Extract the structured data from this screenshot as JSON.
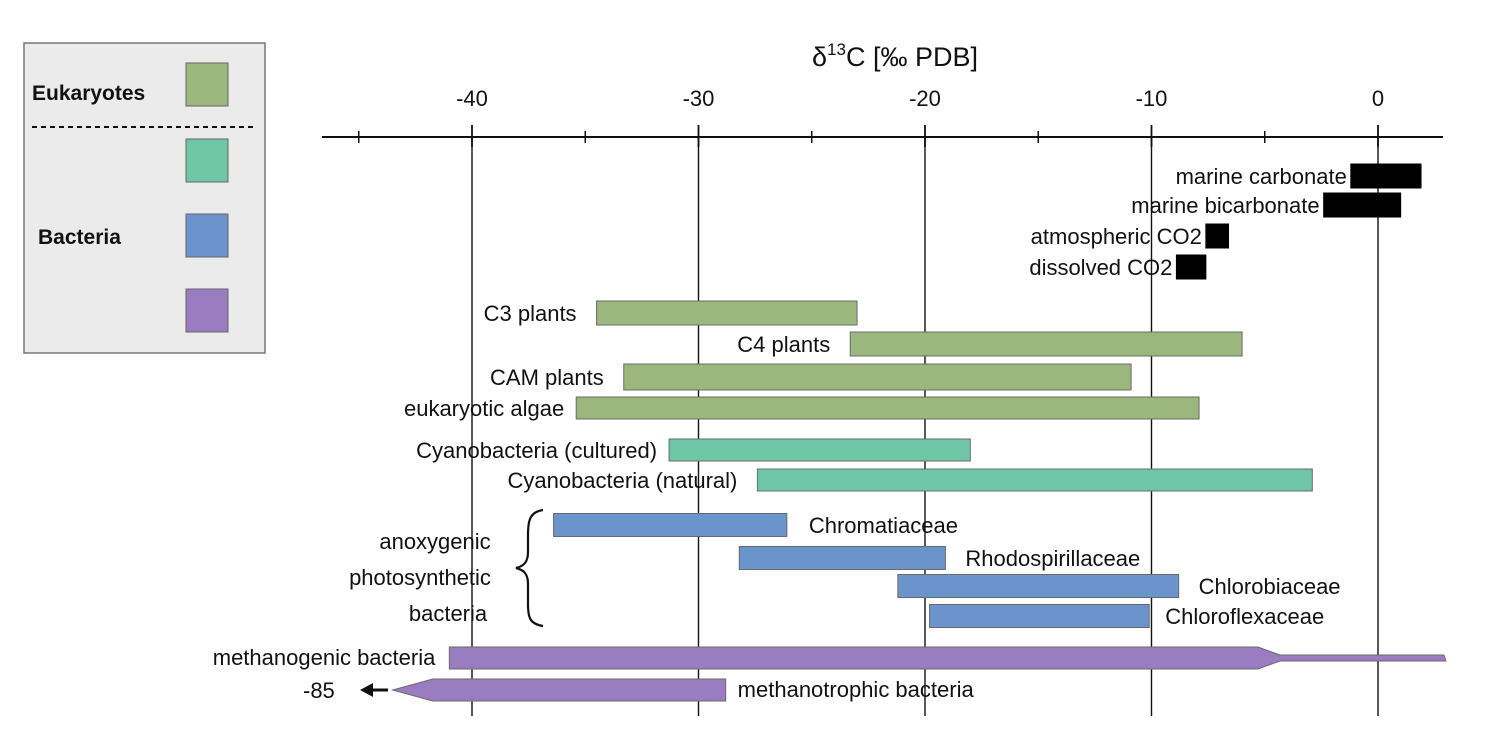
{
  "chart_data": {
    "type": "bar",
    "orientation": "horizontal-range",
    "title": "δ13C [‰ PDB]",
    "title_main": "δ",
    "title_sup": "13",
    "title_rest": "C [‰ PDB]",
    "xlim": [
      -50,
      3
    ],
    "ticks": [
      -40,
      -30,
      -20,
      -10,
      0
    ],
    "tick_labels": [
      "-40",
      "-30",
      "-20",
      "-10",
      "0"
    ],
    "grid_x": true,
    "legend_position": "top-left",
    "colors": {
      "eukaryotes": "#9bb77e",
      "cyanobacteria": "#6fc6a6",
      "anoxygenic": "#6b93cc",
      "methane": "#9a7cc0",
      "inorganic": "#000000"
    },
    "legend": {
      "eukaryotes_label": "Eukaryotes",
      "bacteria_label": "Bacteria"
    },
    "bars": [
      {
        "label": "marine carbonate",
        "min": -1.2,
        "max": 1.9,
        "group": "inorganic"
      },
      {
        "label": "marine bicarbonate",
        "min": -2.4,
        "max": 1.0,
        "group": "inorganic"
      },
      {
        "label": "atmospheric CO2",
        "min": -7.6,
        "max": -6.6,
        "group": "inorganic"
      },
      {
        "label": "dissolved CO2",
        "min": -8.9,
        "max": -7.6,
        "group": "inorganic"
      },
      {
        "label": "C3 plants",
        "min": -34.5,
        "max": -23.0,
        "group": "eukaryotes"
      },
      {
        "label": "C4 plants",
        "min": -23.3,
        "max": -6.0,
        "group": "eukaryotes"
      },
      {
        "label": "CAM plants",
        "min": -33.3,
        "max": -10.9,
        "group": "eukaryotes"
      },
      {
        "label": "eukaryotic algae",
        "min": -35.4,
        "max": -7.9,
        "group": "eukaryotes"
      },
      {
        "label": "Cyanobacteria (cultured)",
        "min": -31.3,
        "max": -18.0,
        "group": "cyanobacteria"
      },
      {
        "label": "Cyanobacteria (natural)",
        "min": -27.4,
        "max": -2.9,
        "group": "cyanobacteria"
      },
      {
        "label": "Chromatiaceae",
        "min": -36.4,
        "max": -26.1,
        "group": "anoxygenic"
      },
      {
        "label": "Rhodospirillaceae",
        "min": -28.2,
        "max": -19.1,
        "group": "anoxygenic"
      },
      {
        "label": "Chlorobiaceae",
        "min": -21.2,
        "max": -8.8,
        "group": "anoxygenic"
      },
      {
        "label": "Chloroflexaceae",
        "min": -19.8,
        "max": -10.1,
        "group": "anoxygenic"
      },
      {
        "label": "methanogenic bacteria",
        "min": -41.0,
        "max": 3.0,
        "group": "methane"
      },
      {
        "label": "methanotrophic bacteria",
        "min": -43.5,
        "max": -28.8,
        "group": "methane"
      }
    ],
    "annotations": {
      "anoxygenic_line1": "anoxygenic",
      "anoxygenic_line2": "photosynthetic",
      "anoxygenic_line3": "bacteria",
      "methanotroph_extent": "-85"
    }
  }
}
